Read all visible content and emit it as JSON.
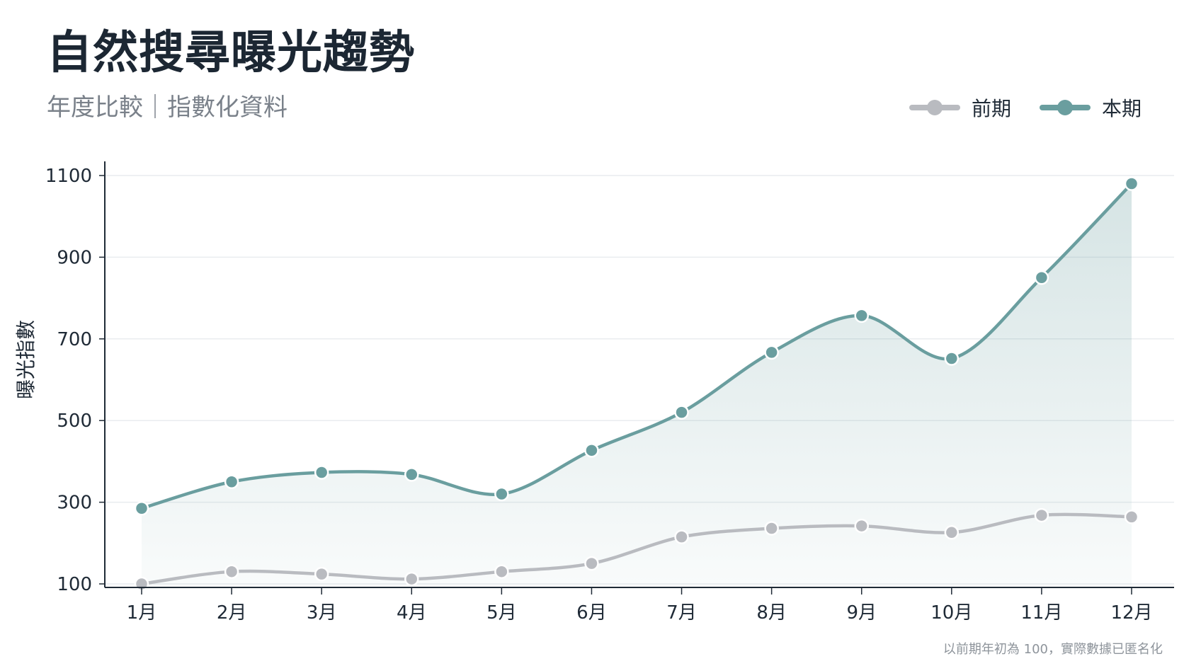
{
  "header": {
    "title": "自然搜尋曝光趨勢",
    "subtitle": "年度比較｜指數化資料"
  },
  "footnote": "以前期年初為 100，實際數據已匿名化",
  "colors": {
    "current": "#6a9e9f",
    "previous": "#b9bbc0",
    "axis": "#1f2a36",
    "grid": "#e9ecef"
  },
  "chart_data": {
    "type": "line",
    "title": "自然搜尋曝光趨勢",
    "subtitle": "年度比較｜指數化資料",
    "xlabel": "",
    "ylabel": "曝光指數",
    "categories": [
      "1月",
      "2月",
      "3月",
      "4月",
      "5月",
      "6月",
      "7月",
      "8月",
      "9月",
      "10月",
      "11月",
      "12月"
    ],
    "yticks": [
      100,
      300,
      500,
      700,
      900,
      1100
    ],
    "ylim": [
      100,
      1100
    ],
    "grid": true,
    "legend_position": "top-right",
    "series": [
      {
        "name": "前期",
        "color": "#b9bbc0",
        "fill": false,
        "values": [
          100,
          130,
          124,
          112,
          130,
          150,
          215,
          236,
          242,
          226,
          268,
          264
        ]
      },
      {
        "name": "本期",
        "color": "#6a9e9f",
        "fill": true,
        "values": [
          285,
          350,
          373,
          368,
          320,
          427,
          520,
          667,
          757,
          652,
          850,
          1080
        ]
      }
    ]
  }
}
